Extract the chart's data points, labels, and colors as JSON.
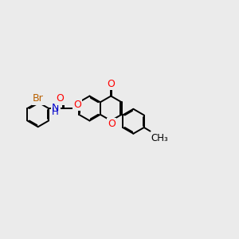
{
  "bg_color": "#ebebeb",
  "bw": 1.4,
  "dbo": 0.05,
  "BL": 1.0,
  "colors": {
    "O": "#ff0000",
    "N": "#0000cc",
    "Br": "#b86000"
  },
  "fs": 9.0,
  "xlim": [
    -4.8,
    7.0
  ],
  "ylim": [
    -3.5,
    3.0
  ]
}
